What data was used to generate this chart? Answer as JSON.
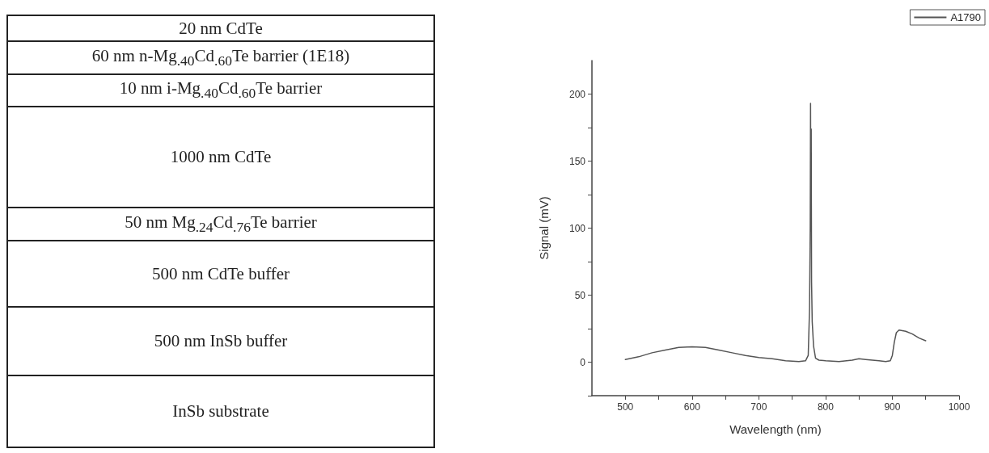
{
  "chart_data": [
    {
      "type": "other",
      "annotations": [
        "20 nm CdTe",
        "60 nm n-Mg$_{.40}$Cd$_{.60}$Te barrier (1E18)",
        "10 nm i-Mg$_{.40}$Cd$_{.60}$Te barrier",
        "1000 nm CdTe",
        "50 nm Mg$_{.24}$Cd$_{.76}$Te barrier",
        "500 nm CdTe buffer",
        "500 nm InSb buffer",
        "InSb substrate"
      ]
    },
    {
      "type": "line",
      "xlabel": "Wavelength (nm)",
      "ylabel": "Signal (mV)",
      "legend": "top right",
      "grid": false,
      "marker": "none",
      "line_style": "solid",
      "xlim": [
        450,
        1000
      ],
      "xticks": [
        500,
        {
          "value": 550,
          "label": null
        },
        600,
        {
          "value": 650,
          "label": null
        },
        700,
        {
          "value": 750,
          "label": null
        },
        800,
        {
          "value": 850,
          "label": null
        },
        900,
        {
          "value": 950,
          "label": null
        },
        1000
      ],
      "ylim": [
        -25,
        225
      ],
      "yticks": [
        {
          "value": -25,
          "label": null
        },
        0,
        {
          "value": 25,
          "label": null
        },
        50,
        {
          "value": 75,
          "label": null
        },
        100,
        {
          "value": 125,
          "label": null
        },
        150,
        {
          "value": 175,
          "label": null
        },
        200
      ],
      "series": [
        {
          "name": "A1790",
          "color": "#555555",
          "x": [
            500,
            520,
            540,
            560,
            580,
            600,
            620,
            640,
            660,
            680,
            700,
            720,
            740,
            760,
            770,
            774,
            776,
            777,
            777.5,
            778,
            778.5,
            779,
            780,
            782,
            785,
            790,
            800,
            820,
            840,
            850,
            860,
            880,
            890,
            897,
            900,
            903,
            906,
            910,
            920,
            930,
            940,
            950
          ],
          "values": [
            2,
            4,
            7,
            9,
            11,
            11.5,
            11,
            9,
            7,
            5,
            3.5,
            2.5,
            1,
            0.5,
            1,
            5,
            40,
            100,
            193,
            98,
            174,
            60,
            30,
            12,
            3,
            1.5,
            1,
            0.5,
            1.5,
            2.5,
            2,
            1,
            0.5,
            1,
            5,
            15,
            22,
            24,
            23,
            21,
            18,
            16
          ]
        }
      ]
    }
  ]
}
